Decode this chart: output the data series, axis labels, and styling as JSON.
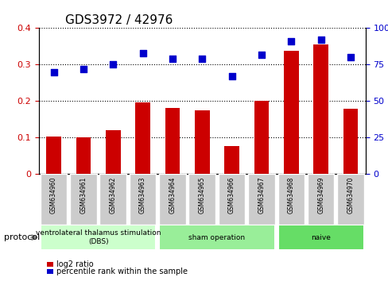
{
  "title": "GDS3972 / 42976",
  "categories": [
    "GSM634960",
    "GSM634961",
    "GSM634962",
    "GSM634963",
    "GSM634964",
    "GSM634965",
    "GSM634966",
    "GSM634967",
    "GSM634968",
    "GSM634969",
    "GSM634970"
  ],
  "log2_ratio": [
    0.103,
    0.1,
    0.12,
    0.197,
    0.182,
    0.175,
    0.078,
    0.2,
    0.337,
    0.355,
    0.18
  ],
  "percentile_rank": [
    70,
    72,
    75,
    83,
    79,
    79,
    67,
    82,
    91,
    92,
    80
  ],
  "bar_color": "#cc0000",
  "dot_color": "#0000cc",
  "ylim_left": [
    0,
    0.4
  ],
  "ylim_right": [
    0,
    100
  ],
  "yticks_left": [
    0,
    0.1,
    0.2,
    0.3,
    0.4
  ],
  "yticks_right": [
    0,
    25,
    50,
    75,
    100
  ],
  "groups": [
    {
      "label": "ventrolateral thalamus stimulation\n(DBS)",
      "start": 0,
      "end": 3,
      "color": "#ccffcc"
    },
    {
      "label": "sham operation",
      "start": 4,
      "end": 7,
      "color": "#99ee99"
    },
    {
      "label": "naive",
      "start": 8,
      "end": 10,
      "color": "#66dd66"
    }
  ],
  "legend_items": [
    {
      "label": "log2 ratio",
      "color": "#cc0000",
      "marker": "s"
    },
    {
      "label": "percentile rank within the sample",
      "color": "#0000cc",
      "marker": "s"
    }
  ],
  "protocol_label": "protocol",
  "background_color": "#ffffff",
  "plot_bg_color": "#ffffff",
  "tick_label_bg": "#cccccc"
}
